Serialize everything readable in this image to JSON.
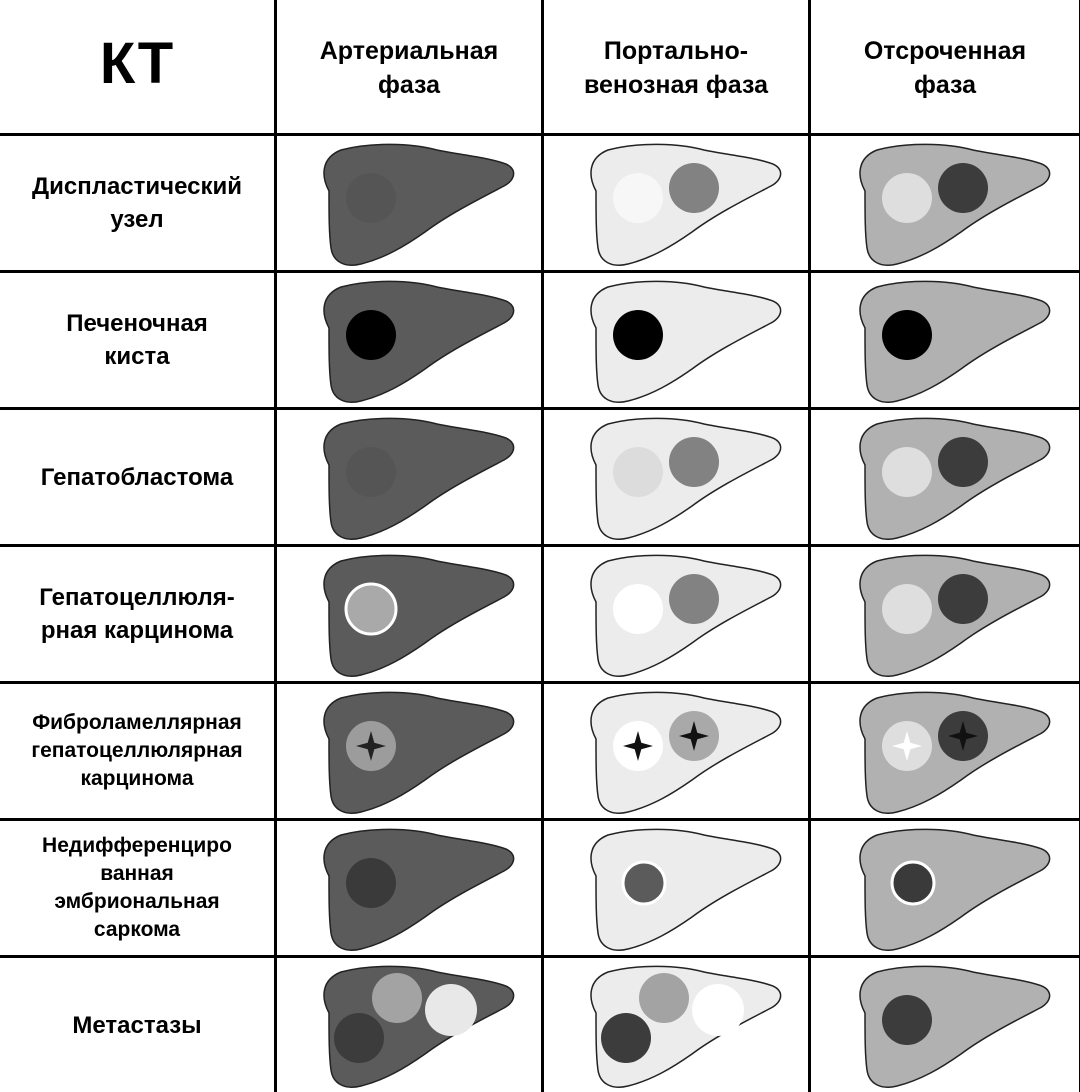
{
  "corner_title": "КТ",
  "phases": [
    {
      "label_lines": [
        "Артериальная",
        "фаза"
      ]
    },
    {
      "label_lines": [
        "Портально-",
        "венозная фаза"
      ]
    },
    {
      "label_lines": [
        "Отсроченная",
        "фаза"
      ]
    }
  ],
  "liver_fill": {
    "arterial": "#5b5b5b",
    "portal": "#ececec",
    "delayed": "#b1b1b1"
  },
  "rows": [
    {
      "label_lines": [
        "Диспластический",
        "узел"
      ],
      "cells": [
        {
          "lesions": [
            {
              "pos": "left",
              "fill": "#555555"
            }
          ]
        },
        {
          "lesions": [
            {
              "pos": "left",
              "fill": "#f7f7f7"
            },
            {
              "pos": "right",
              "fill": "#828282"
            }
          ]
        },
        {
          "lesions": [
            {
              "pos": "left",
              "fill": "#dedede"
            },
            {
              "pos": "right",
              "fill": "#3c3c3c"
            }
          ]
        }
      ]
    },
    {
      "label_lines": [
        "Печеночная",
        "киста"
      ],
      "cells": [
        {
          "lesions": [
            {
              "pos": "left",
              "fill": "#000000"
            }
          ]
        },
        {
          "lesions": [
            {
              "pos": "left",
              "fill": "#000000"
            }
          ]
        },
        {
          "lesions": [
            {
              "pos": "left",
              "fill": "#000000"
            }
          ]
        }
      ]
    },
    {
      "label_lines": [
        "Гепатобластома"
      ],
      "cells": [
        {
          "lesions": [
            {
              "pos": "left",
              "fill": "#555555"
            }
          ]
        },
        {
          "lesions": [
            {
              "pos": "left",
              "fill": "#dcdcdc"
            },
            {
              "pos": "right",
              "fill": "#828282"
            }
          ]
        },
        {
          "lesions": [
            {
              "pos": "left",
              "fill": "#dedede"
            },
            {
              "pos": "right",
              "fill": "#3c3c3c"
            }
          ]
        }
      ]
    },
    {
      "label_lines": [
        "Гепатоцеллюля-",
        "рная карцинома"
      ],
      "cells": [
        {
          "lesions": [
            {
              "pos": "left",
              "fill": "#a9a9a9",
              "ring": "#ffffff"
            }
          ]
        },
        {
          "lesions": [
            {
              "pos": "left",
              "fill": "#ffffff"
            },
            {
              "pos": "right",
              "fill": "#828282"
            }
          ]
        },
        {
          "lesions": [
            {
              "pos": "left",
              "fill": "#dedede"
            },
            {
              "pos": "right",
              "fill": "#3c3c3c"
            }
          ]
        }
      ]
    },
    {
      "label_lines": [
        "Фиброламеллярная",
        "гепатоцеллюлярная",
        "карцинома"
      ],
      "small": true,
      "cells": [
        {
          "lesions": [
            {
              "pos": "left",
              "fill": "#9c9c9c",
              "scar": "#222222"
            }
          ]
        },
        {
          "lesions": [
            {
              "pos": "left",
              "fill": "#ffffff",
              "scar": "#111111"
            },
            {
              "pos": "right",
              "fill": "#a9a9a9",
              "scar": "#111111"
            }
          ]
        },
        {
          "lesions": [
            {
              "pos": "left",
              "fill": "#dedede",
              "scar": "#ffffff"
            },
            {
              "pos": "right",
              "fill": "#3c3c3c",
              "scar": "#111111"
            }
          ]
        }
      ]
    },
    {
      "label_lines": [
        "Недифференциро",
        "ванная",
        "эмбриональная",
        "саркома"
      ],
      "small": true,
      "cells": [
        {
          "lesions": [
            {
              "pos": "left",
              "fill": "#3a3a3a"
            }
          ]
        },
        {
          "lesions": [
            {
              "pos": "left-small",
              "fill": "#5b5b5b",
              "ring": "#ffffff"
            }
          ]
        },
        {
          "lesions": [
            {
              "pos": "left-small",
              "fill": "#3a3a3a",
              "ring": "#ffffff"
            }
          ]
        }
      ]
    },
    {
      "label_lines": [
        "Метастазы"
      ],
      "cells": [
        {
          "lesions": [
            {
              "pos": "m-top",
              "fill": "#a3a3a3"
            },
            {
              "pos": "m-right",
              "fill": "#e8e8e8"
            },
            {
              "pos": "m-bottom",
              "fill": "#3c3c3c"
            }
          ]
        },
        {
          "lesions": [
            {
              "pos": "m-top",
              "fill": "#a3a3a3"
            },
            {
              "pos": "m-right",
              "fill": "#ffffff"
            },
            {
              "pos": "m-bottom",
              "fill": "#3c3c3c"
            }
          ]
        },
        {
          "lesions": [
            {
              "pos": "left",
              "fill": "#3c3c3c"
            }
          ]
        }
      ]
    }
  ]
}
